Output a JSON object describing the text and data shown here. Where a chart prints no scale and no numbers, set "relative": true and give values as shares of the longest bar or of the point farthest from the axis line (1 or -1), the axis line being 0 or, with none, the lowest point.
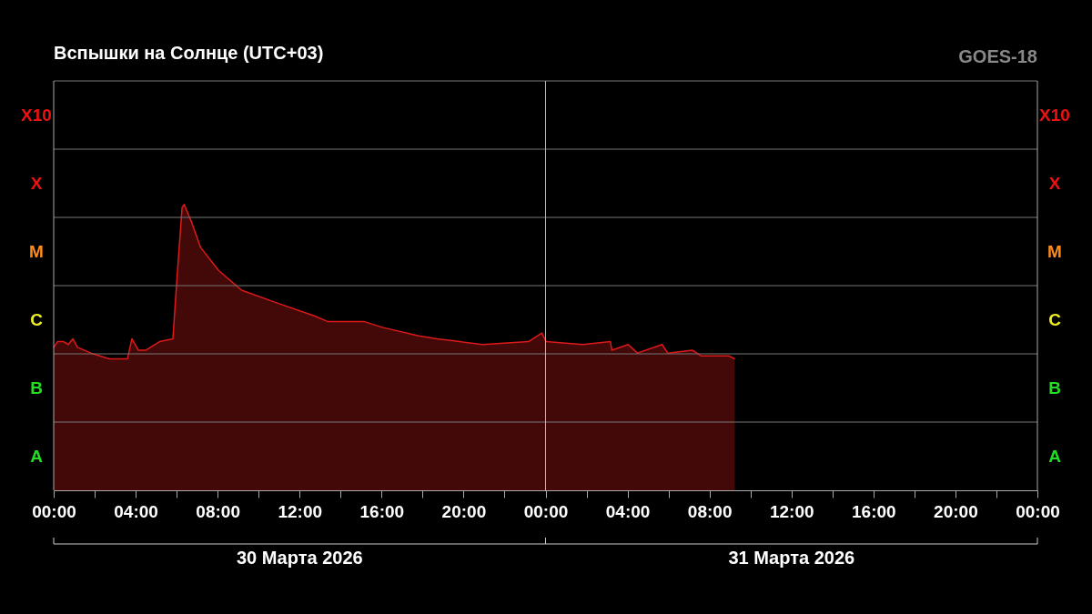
{
  "chart_data": {
    "type": "area",
    "relative": true,
    "title": "Вспышки на Солнце (UTC+03)",
    "annotations": [
      "GOES-18",
      "30 Марта 2026",
      "31 Марта 2026",
      "A",
      "B",
      "C",
      "M",
      "X",
      "X10"
    ],
    "x": [
      "2026-03-30T00:00",
      "2026-03-30T00:11",
      "2026-03-30T00:29",
      "2026-03-30T00:43",
      "2026-03-30T00:56",
      "2026-03-30T01:10",
      "2026-03-30T01:49",
      "2026-03-30T02:43",
      "2026-03-30T03:36",
      "2026-03-30T03:49",
      "2026-03-30T04:08",
      "2026-03-30T04:29",
      "2026-03-30T05:10",
      "2026-03-30T05:49",
      "2026-03-30T06:02",
      "2026-03-30T06:16",
      "2026-03-30T06:22",
      "2026-03-30T06:43",
      "2026-03-30T07:10",
      "2026-03-30T08:02",
      "2026-03-30T09:10",
      "2026-03-30T10:43",
      "2026-03-30T12:43",
      "2026-03-30T13:23",
      "2026-03-30T15:10",
      "2026-03-30T16:02",
      "2026-03-30T17:49",
      "2026-03-30T18:43",
      "2026-03-30T19:49",
      "2026-03-30T20:56",
      "2026-03-30T23:10",
      "2026-03-30T23:49",
      "2026-03-31T00:02",
      "2026-03-31T01:49",
      "2026-03-31T03:10",
      "2026-03-31T03:14",
      "2026-03-31T04:02",
      "2026-03-31T04:29",
      "2026-03-31T05:41",
      "2026-03-31T05:58",
      "2026-03-31T07:10",
      "2026-03-31T07:36",
      "2026-03-31T08:56",
      "2026-03-31T09:14"
    ],
    "series": [
      {
        "color": "#dd1a1a",
        "values": [
          0.5,
          0.52,
          0.52,
          0.51,
          0.53,
          0.5,
          0.48,
          0.46,
          0.46,
          0.53,
          0.49,
          0.49,
          0.52,
          0.53,
          0.76,
          0.99,
          1,
          0.94,
          0.85,
          0.77,
          0.7,
          0.66,
          0.61,
          0.59,
          0.59,
          0.57,
          0.54,
          0.53,
          0.52,
          0.51,
          0.52,
          0.55,
          0.52,
          0.51,
          0.52,
          0.49,
          0.51,
          0.48,
          0.51,
          0.48,
          0.49,
          0.47,
          0.47,
          0.46
        ]
      }
    ],
    "xlim": [
      "2026-03-30T00:00",
      "2026-04-01T00:00"
    ],
    "xticks": [
      {
        "value": "2026-03-30T00:00",
        "label": "00:00"
      },
      {
        "value": "2026-03-30T02:00",
        "label": null
      },
      {
        "value": "2026-03-30T04:00",
        "label": "04:00"
      },
      {
        "value": "2026-03-30T06:00",
        "label": null
      },
      {
        "value": "2026-03-30T08:00",
        "label": "08:00"
      },
      {
        "value": "2026-03-30T10:00",
        "label": null
      },
      {
        "value": "2026-03-30T12:00",
        "label": "12:00"
      },
      {
        "value": "2026-03-30T14:00",
        "label": null
      },
      {
        "value": "2026-03-30T16:00",
        "label": "16:00"
      },
      {
        "value": "2026-03-30T18:00",
        "label": null
      },
      {
        "value": "2026-03-30T20:00",
        "label": "20:00"
      },
      {
        "value": "2026-03-30T22:00",
        "label": null
      },
      {
        "value": "2026-03-31T00:00",
        "label": "00:00"
      },
      {
        "value": "2026-03-31T02:00",
        "label": null
      },
      {
        "value": "2026-03-31T04:00",
        "label": "04:00"
      },
      {
        "value": "2026-03-31T06:00",
        "label": null
      },
      {
        "value": "2026-03-31T08:00",
        "label": "08:00"
      },
      {
        "value": "2026-03-31T10:00",
        "label": null
      },
      {
        "value": "2026-03-31T12:00",
        "label": "12:00"
      },
      {
        "value": "2026-03-31T14:00",
        "label": null
      },
      {
        "value": "2026-03-31T16:00",
        "label": "16:00"
      },
      {
        "value": "2026-03-31T18:00",
        "label": null
      },
      {
        "value": "2026-03-31T20:00",
        "label": "20:00"
      },
      {
        "value": "2026-03-31T22:00",
        "label": null
      },
      {
        "value": "2026-04-01T00:00",
        "label": "00:00"
      }
    ],
    "ref_lines": [
      {
        "axis": "x",
        "value": "2026-03-31T00:00",
        "color": "#bbbbbb"
      }
    ],
    "grid": "y"
  }
}
